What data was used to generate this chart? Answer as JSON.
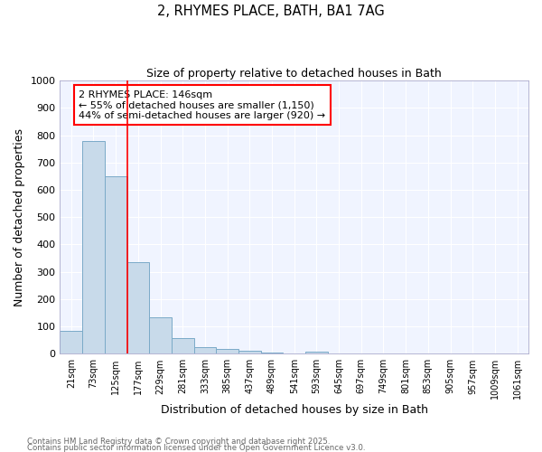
{
  "title1": "2, RHYMES PLACE, BATH, BA1 7AG",
  "title2": "Size of property relative to detached houses in Bath",
  "xlabel": "Distribution of detached houses by size in Bath",
  "ylabel": "Number of detached properties",
  "bin_labels": [
    "21sqm",
    "73sqm",
    "125sqm",
    "177sqm",
    "229sqm",
    "281sqm",
    "333sqm",
    "385sqm",
    "437sqm",
    "489sqm",
    "541sqm",
    "593sqm",
    "645sqm",
    "697sqm",
    "749sqm",
    "801sqm",
    "853sqm",
    "905sqm",
    "957sqm",
    "1009sqm",
    "1061sqm"
  ],
  "bar_values": [
    85,
    780,
    650,
    335,
    135,
    58,
    25,
    18,
    10,
    6,
    0,
    9,
    0,
    0,
    0,
    0,
    0,
    0,
    0,
    0,
    0
  ],
  "bar_color": "#c8daea",
  "bar_edge_color": "#7aaac8",
  "ylim": [
    0,
    1000
  ],
  "yticks": [
    0,
    100,
    200,
    300,
    400,
    500,
    600,
    700,
    800,
    900,
    1000
  ],
  "annotation_text": "2 RHYMES PLACE: 146sqm\n← 55% of detached houses are smaller (1,150)\n44% of semi-detached houses are larger (920) →",
  "footnote1": "Contains HM Land Registry data © Crown copyright and database right 2025.",
  "footnote2": "Contains public sector information licensed under the Open Government Licence v3.0.",
  "background_color": "#ffffff",
  "plot_bg_color": "#f0f4ff"
}
